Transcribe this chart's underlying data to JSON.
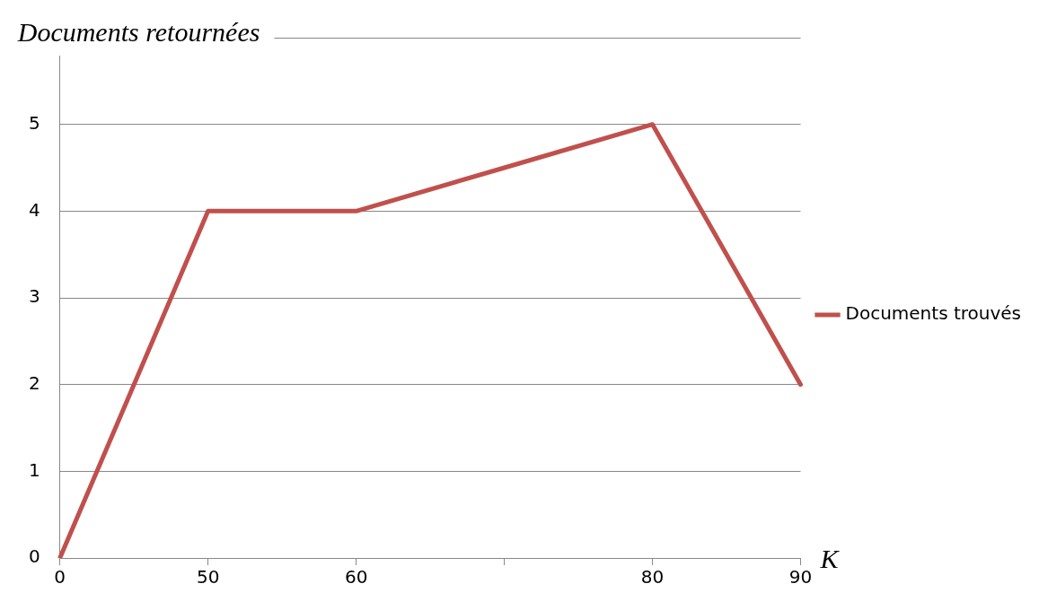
{
  "chart_data": {
    "type": "line",
    "ylabel": "Documents retournées",
    "xlabel": "K",
    "categories": [
      "0",
      "50",
      "60",
      null,
      "80",
      "90"
    ],
    "series": [
      {
        "name": "Documents trouvés",
        "color": "#c0504d",
        "values": [
          0,
          4,
          4,
          4.5,
          5,
          2
        ]
      }
    ],
    "ylim": [
      0,
      6
    ],
    "yticks": [
      0,
      1,
      2,
      3,
      4,
      5,
      {
        "value": 6,
        "label": null
      }
    ],
    "grid": "y",
    "legend": "right",
    "marker": "none",
    "line_style": "solid"
  }
}
